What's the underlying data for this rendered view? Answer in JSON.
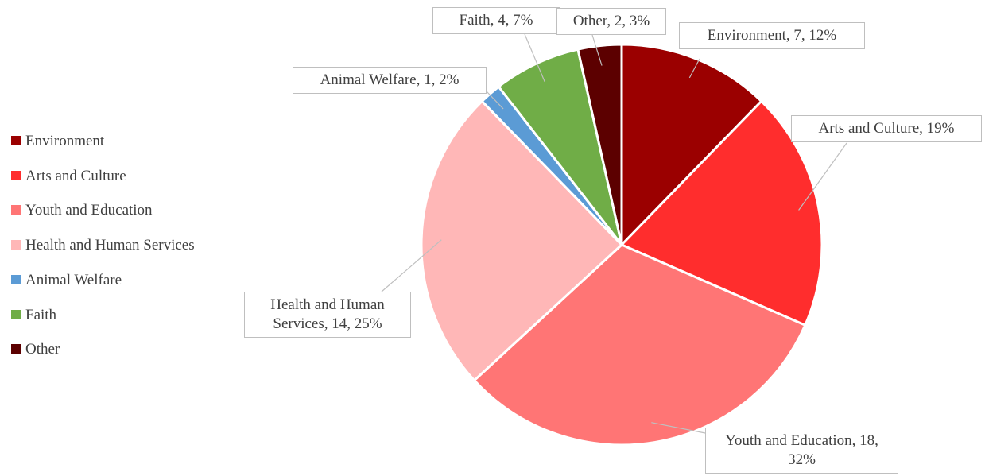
{
  "chart_data": {
    "type": "pie",
    "categories": [
      "Environment",
      "Arts and Culture",
      "Youth and Education",
      "Health and Human Services",
      "Animal Welfare",
      "Faith",
      "Other"
    ],
    "values": [
      7,
      11,
      18,
      14,
      1,
      4,
      2
    ],
    "value_labels": [
      "Environment, 7, 12%",
      "Arts and Culture, 19%",
      "Youth and Education, 18, 32%",
      "Health and Human Services, 14, 25%",
      "Animal Welfare, 1, 2%",
      "Faith, 4, 7%",
      "Other, 2, 3%"
    ],
    "colors": [
      "#9b0000",
      "#ff2d2d",
      "#ff7575",
      "#ffb7b7",
      "#5b9bd5",
      "#70ad47",
      "#5c0000"
    ],
    "legend": "left"
  }
}
